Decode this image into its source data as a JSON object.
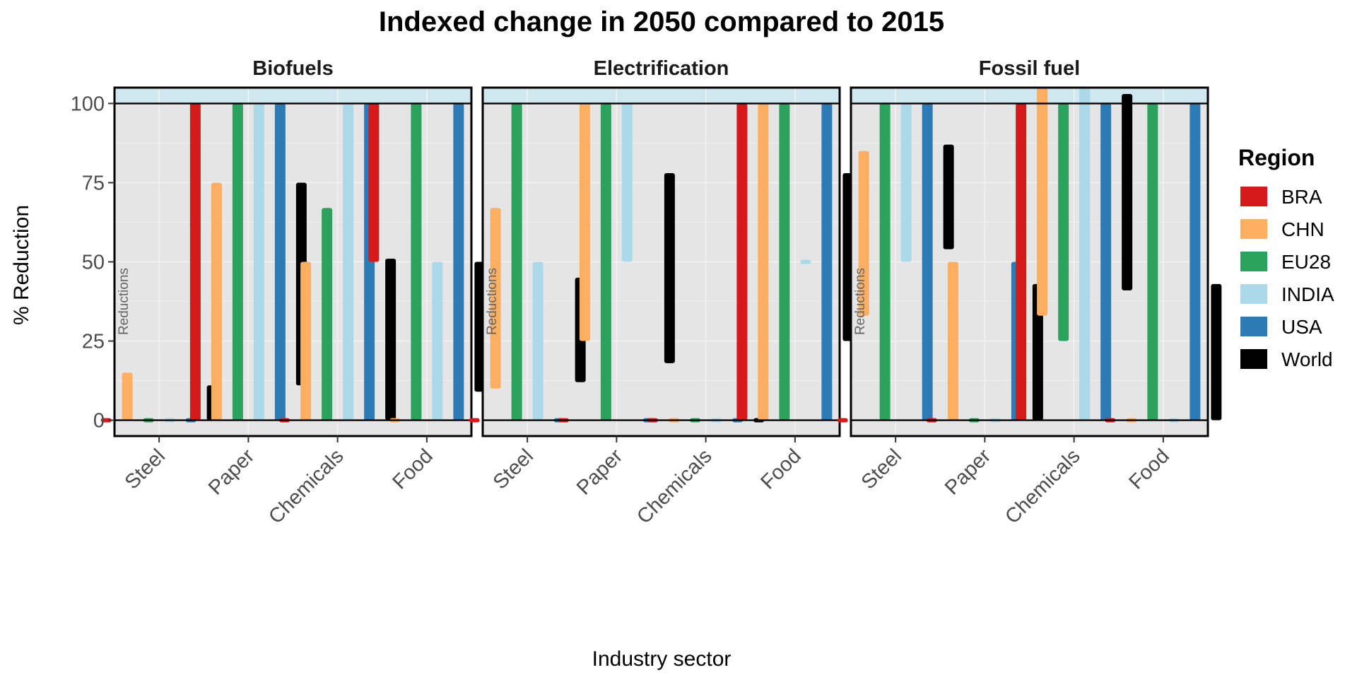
{
  "chart_data": {
    "type": "bar",
    "title": "Indexed change in 2050 compared to 2015",
    "xlabel": "Industry sector",
    "ylabel": "% Reduction",
    "ylim": [
      -5,
      105
    ],
    "yticks": [
      0,
      25,
      50,
      75,
      100
    ],
    "categories": [
      "Steel",
      "Paper",
      "Chemicals",
      "Food"
    ],
    "region_label": "Reductions",
    "grid": true,
    "legend": {
      "title": "Region",
      "position": "right",
      "items": [
        {
          "name": "BRA",
          "color": "#d7191c"
        },
        {
          "name": "CHN",
          "color": "#fdae61"
        },
        {
          "name": "EU28",
          "color": "#2ca25f"
        },
        {
          "name": "INDIA",
          "color": "#abd9e9"
        },
        {
          "name": "USA",
          "color": "#2c7bb6"
        },
        {
          "name": "World",
          "color": "#000000"
        }
      ]
    },
    "colors": {
      "panel_bg": "#e5e5e5",
      "band": "#cfe8f0",
      "grid": "#f2f2f2"
    },
    "panels": [
      {
        "name": "Biofuels",
        "ranges": [
          {
            "category": "Steel",
            "series": "BRA",
            "low": 0,
            "high": 0
          },
          {
            "category": "Steel",
            "series": "CHN",
            "low": 0,
            "high": 15
          },
          {
            "category": "Steel",
            "series": "EU28",
            "low": 0,
            "high": 0
          },
          {
            "category": "Steel",
            "series": "INDIA",
            "low": 0,
            "high": 0
          },
          {
            "category": "Steel",
            "series": "USA",
            "low": 0,
            "high": 0
          },
          {
            "category": "Steel",
            "series": "World",
            "low": 0,
            "high": 11
          },
          {
            "category": "Paper",
            "series": "BRA",
            "low": 0,
            "high": 100
          },
          {
            "category": "Paper",
            "series": "CHN",
            "low": 0,
            "high": 75
          },
          {
            "category": "Paper",
            "series": "EU28",
            "low": 0,
            "high": 100
          },
          {
            "category": "Paper",
            "series": "INDIA",
            "low": 0,
            "high": 100
          },
          {
            "category": "Paper",
            "series": "USA",
            "low": 0,
            "high": 100
          },
          {
            "category": "Paper",
            "series": "World",
            "low": 11,
            "high": 75
          },
          {
            "category": "Chemicals",
            "series": "BRA",
            "low": 0,
            "high": 0
          },
          {
            "category": "Chemicals",
            "series": "CHN",
            "low": 0,
            "high": 50
          },
          {
            "category": "Chemicals",
            "series": "EU28",
            "low": 0,
            "high": 67
          },
          {
            "category": "Chemicals",
            "series": "INDIA",
            "low": 0,
            "high": 100
          },
          {
            "category": "Chemicals",
            "series": "USA",
            "low": 0,
            "high": 100
          },
          {
            "category": "Chemicals",
            "series": "World",
            "low": 0,
            "high": 51
          },
          {
            "category": "Food",
            "series": "BRA",
            "low": 50,
            "high": 100
          },
          {
            "category": "Food",
            "series": "CHN",
            "low": 0,
            "high": 0
          },
          {
            "category": "Food",
            "series": "EU28",
            "low": 0,
            "high": 100
          },
          {
            "category": "Food",
            "series": "INDIA",
            "low": 0,
            "high": 50
          },
          {
            "category": "Food",
            "series": "USA",
            "low": 0,
            "high": 100
          },
          {
            "category": "Food",
            "series": "World",
            "low": 9,
            "high": 50
          }
        ]
      },
      {
        "name": "Electrification",
        "ranges": [
          {
            "category": "Steel",
            "series": "BRA",
            "low": 0,
            "high": 0
          },
          {
            "category": "Steel",
            "series": "CHN",
            "low": 10,
            "high": 67
          },
          {
            "category": "Steel",
            "series": "EU28",
            "low": 0,
            "high": 100
          },
          {
            "category": "Steel",
            "series": "INDIA",
            "low": 0,
            "high": 50
          },
          {
            "category": "Steel",
            "series": "USA",
            "low": 0,
            "high": 0
          },
          {
            "category": "Steel",
            "series": "World",
            "low": 12,
            "high": 45
          },
          {
            "category": "Paper",
            "series": "BRA",
            "low": 0,
            "high": 0
          },
          {
            "category": "Paper",
            "series": "CHN",
            "low": 25,
            "high": 100
          },
          {
            "category": "Paper",
            "series": "EU28",
            "low": 0,
            "high": 100
          },
          {
            "category": "Paper",
            "series": "INDIA",
            "low": 50,
            "high": 100
          },
          {
            "category": "Paper",
            "series": "USA",
            "low": 0,
            "high": 0
          },
          {
            "category": "Paper",
            "series": "World",
            "low": 18,
            "high": 78
          },
          {
            "category": "Chemicals",
            "series": "BRA",
            "low": 0,
            "high": 0
          },
          {
            "category": "Chemicals",
            "series": "CHN",
            "low": 0,
            "high": 0
          },
          {
            "category": "Chemicals",
            "series": "EU28",
            "low": 0,
            "high": 0
          },
          {
            "category": "Chemicals",
            "series": "INDIA",
            "low": 0,
            "high": 0
          },
          {
            "category": "Chemicals",
            "series": "USA",
            "low": 0,
            "high": 0
          },
          {
            "category": "Chemicals",
            "series": "World",
            "low": 0,
            "high": 0
          },
          {
            "category": "Food",
            "series": "BRA",
            "low": 0,
            "high": 100
          },
          {
            "category": "Food",
            "series": "CHN",
            "low": 0,
            "high": 100
          },
          {
            "category": "Food",
            "series": "EU28",
            "low": 0,
            "high": 100
          },
          {
            "category": "Food",
            "series": "INDIA",
            "low": 50,
            "high": 50
          },
          {
            "category": "Food",
            "series": "USA",
            "low": 0,
            "high": 100
          },
          {
            "category": "Food",
            "series": "World",
            "low": 25,
            "high": 78
          }
        ]
      },
      {
        "name": "Fossil fuel",
        "ranges": [
          {
            "category": "Steel",
            "series": "BRA",
            "low": 0,
            "high": 0
          },
          {
            "category": "Steel",
            "series": "CHN",
            "low": 33,
            "high": 85
          },
          {
            "category": "Steel",
            "series": "EU28",
            "low": 0,
            "high": 100
          },
          {
            "category": "Steel",
            "series": "INDIA",
            "low": 50,
            "high": 100
          },
          {
            "category": "Steel",
            "series": "USA",
            "low": 0,
            "high": 100
          },
          {
            "category": "Steel",
            "series": "World",
            "low": 54,
            "high": 87
          },
          {
            "category": "Paper",
            "series": "BRA",
            "low": 0,
            "high": 0
          },
          {
            "category": "Paper",
            "series": "CHN",
            "low": 0,
            "high": 50
          },
          {
            "category": "Paper",
            "series": "EU28",
            "low": 0,
            "high": 0
          },
          {
            "category": "Paper",
            "series": "INDIA",
            "low": 0,
            "high": 0
          },
          {
            "category": "Paper",
            "series": "USA",
            "low": 0,
            "high": 50
          },
          {
            "category": "Paper",
            "series": "World",
            "low": 0,
            "high": 43
          },
          {
            "category": "Chemicals",
            "series": "BRA",
            "low": 0,
            "high": 100
          },
          {
            "category": "Chemicals",
            "series": "CHN",
            "low": 33,
            "high": 105
          },
          {
            "category": "Chemicals",
            "series": "EU28",
            "low": 25,
            "high": 100
          },
          {
            "category": "Chemicals",
            "series": "INDIA",
            "low": 0,
            "high": 105
          },
          {
            "category": "Chemicals",
            "series": "USA",
            "low": 0,
            "high": 100
          },
          {
            "category": "Chemicals",
            "series": "World",
            "low": 41,
            "high": 103
          },
          {
            "category": "Food",
            "series": "BRA",
            "low": 0,
            "high": 0
          },
          {
            "category": "Food",
            "series": "CHN",
            "low": 0,
            "high": 0
          },
          {
            "category": "Food",
            "series": "EU28",
            "low": 0,
            "high": 100
          },
          {
            "category": "Food",
            "series": "INDIA",
            "low": 0,
            "high": 0
          },
          {
            "category": "Food",
            "series": "USA",
            "low": 0,
            "high": 100
          },
          {
            "category": "Food",
            "series": "World",
            "low": 0,
            "high": 43
          }
        ]
      }
    ]
  }
}
